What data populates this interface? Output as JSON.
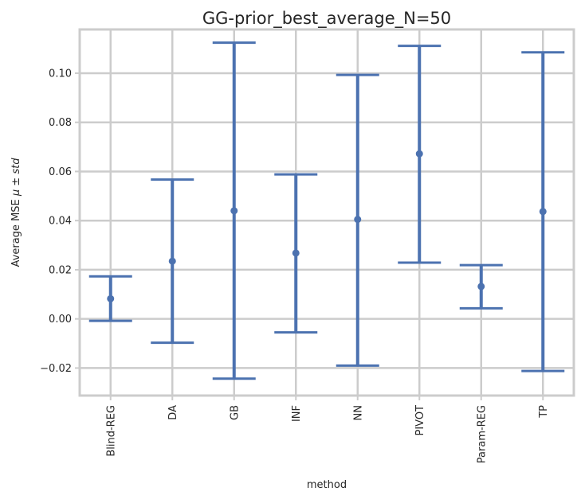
{
  "chart_data": {
    "type": "errorbar",
    "title": "GG-prior_best_average_N=50",
    "xlabel": "method",
    "ylabel": "Average MSE $\\hat{\\mu} \\pm std$",
    "ylabel_parts": {
      "prefix": "Average MSE ",
      "mu": "μ",
      "hat": "^",
      "pm": " ± ",
      "std": "std"
    },
    "categories": [
      "Blind-REG",
      "DA",
      "GB",
      "INF",
      "NN",
      "PIVOT",
      "Param-REG",
      "TP"
    ],
    "series": [
      {
        "mean": [
          0.0082,
          0.0235,
          0.044,
          0.0268,
          0.0405,
          0.0672,
          0.0132,
          0.0437
        ],
        "lower": [
          -0.0008,
          -0.0097,
          -0.0243,
          -0.0055,
          -0.019,
          0.0229,
          0.0043,
          -0.0212
        ],
        "upper": [
          0.0173,
          0.0567,
          0.1124,
          0.0588,
          0.0993,
          0.1111,
          0.0219,
          0.1085
        ]
      }
    ],
    "yticks": [
      -0.02,
      0.0,
      0.02,
      0.04,
      0.06,
      0.08,
      0.1
    ],
    "ytick_labels": [
      "−0.02",
      "0.00",
      "0.02",
      "0.04",
      "0.06",
      "0.08",
      "0.10"
    ],
    "ylim": [
      -0.0312,
      0.1178
    ],
    "grid": true,
    "colors": {
      "series": "#4c72b0",
      "grid": "#cccccc",
      "frame": "#cccccc",
      "text": "#262626"
    }
  }
}
